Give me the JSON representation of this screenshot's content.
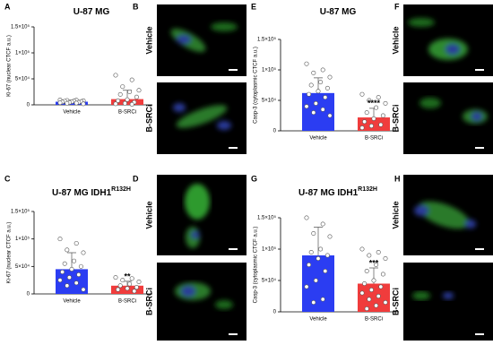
{
  "chart_data": [
    {
      "type": "bar",
      "letter": "A",
      "title": "U-87 MG",
      "ylabel": "Ki-67 (nuclear CTCF a.u.)",
      "categories": [
        "Vehicle",
        "B-SRCi"
      ],
      "colors": [
        "#2b3df2",
        "#f03c3c"
      ],
      "values": [
        6000,
        11000
      ],
      "errors": [
        3000,
        17000
      ],
      "points": [
        [
          9500,
          9000,
          8500,
          8000,
          7500,
          7000,
          6500,
          6000,
          5500,
          5000,
          4500,
          4000,
          3500,
          3000,
          2000
        ],
        [
          57000,
          48000,
          35000,
          28000,
          25000,
          20000,
          15000,
          10000,
          8000,
          5000,
          3000,
          2000,
          1000
        ]
      ],
      "significance": [
        null,
        null
      ],
      "ylim": [
        0,
        150000
      ],
      "yticks": [
        0,
        {
          "value": 50000,
          "label": "5×10⁴"
        },
        {
          "value": 100000,
          "label": "1×10⁵"
        },
        {
          "value": 150000,
          "label": "1.5×10⁵"
        }
      ]
    },
    {
      "type": "bar",
      "letter": "E",
      "title": "U-87 MG",
      "ylabel": "Casp-3 (cytoplasmic CTCF a.u.)",
      "categories": [
        "Vehicle",
        "B-SRCi"
      ],
      "colors": [
        "#2b3df2",
        "#f03c3c"
      ],
      "values": [
        62000,
        22000
      ],
      "errors": [
        25000,
        15000
      ],
      "points": [
        [
          110000,
          100000,
          95000,
          88000,
          80000,
          75000,
          70000,
          65000,
          60000,
          55000,
          45000,
          40000,
          35000,
          30000,
          25000
        ],
        [
          60000,
          55000,
          50000,
          45000,
          38000,
          30000,
          25000,
          20000,
          15000,
          10000,
          8000,
          5000
        ]
      ],
      "significance": [
        null,
        "****"
      ],
      "ylim": [
        0,
        150000
      ],
      "yticks": [
        0,
        {
          "value": 50000,
          "label": "5×10⁴"
        },
        {
          "value": 100000,
          "label": "1×10⁵"
        },
        {
          "value": 150000,
          "label": "1.5×10⁵"
        }
      ]
    },
    {
      "type": "bar",
      "letter": "C",
      "title": "U-87 MG IDH1",
      "title_superscript": "R132H",
      "ylabel": "Ki-67 (nuclear CTCF a.u.)",
      "categories": [
        "Vehicle",
        "B-SRCi"
      ],
      "colors": [
        "#2b3df2",
        "#f03c3c"
      ],
      "values": [
        45000,
        15000
      ],
      "errors": [
        30000,
        8000
      ],
      "points": [
        [
          100000,
          92000,
          80000,
          75000,
          60000,
          55000,
          50000,
          45000,
          40000,
          35000,
          30000,
          25000,
          20000,
          15000,
          8000
        ],
        [
          30000,
          28000,
          25000,
          22000,
          18000,
          15000,
          12000,
          10000,
          8000,
          5000
        ]
      ],
      "significance": [
        null,
        "**"
      ],
      "ylim": [
        0,
        150000
      ],
      "yticks": [
        0,
        {
          "value": 50000,
          "label": "5×10⁴"
        },
        {
          "value": 100000,
          "label": "1×10⁵"
        },
        {
          "value": 150000,
          "label": "1.5×10⁵"
        }
      ]
    },
    {
      "type": "bar",
      "letter": "G",
      "title": "U-87 MG IDH1",
      "title_superscript": "R132H",
      "ylabel": "Casp-3 (cytoplasmic CTCF a.u.)",
      "categories": [
        "Vehicle",
        "B-SRCi"
      ],
      "colors": [
        "#2b3df2",
        "#f03c3c"
      ],
      "values": [
        90000,
        45000
      ],
      "errors": [
        45000,
        25000
      ],
      "points": [
        [
          150000,
          140000,
          125000,
          120000,
          100000,
          95000,
          90000,
          85000,
          75000,
          65000,
          50000,
          40000,
          20000,
          15000
        ],
        [
          100000,
          95000,
          90000,
          85000,
          75000,
          65000,
          60000,
          50000,
          45000,
          40000,
          35000,
          30000,
          25000,
          20000,
          15000,
          10000,
          5000
        ]
      ],
      "significance": [
        null,
        "***"
      ],
      "ylim": [
        0,
        150000
      ],
      "yticks": [
        0,
        {
          "value": 50000,
          "label": "5×10⁴"
        },
        {
          "value": 100000,
          "label": "1×10⁵"
        },
        {
          "value": 150000,
          "label": "1.5×10⁵"
        }
      ]
    }
  ],
  "panels": [
    {
      "letter": "B",
      "labels": [
        "Vehicle",
        "B-SRCi"
      ]
    },
    {
      "letter": "F",
      "labels": [
        "Vehicle",
        "B-SRCi"
      ]
    },
    {
      "letter": "D",
      "labels": [
        "Vehicle",
        "B-SRCi"
      ]
    },
    {
      "letter": "H",
      "labels": [
        "Vehicle",
        "B-SRCi"
      ]
    }
  ]
}
